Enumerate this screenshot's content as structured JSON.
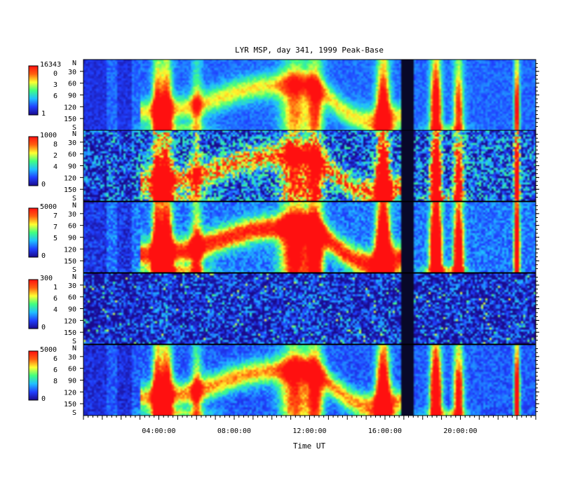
{
  "chart_data": {
    "type": "heatmap",
    "title": "LYR MSP, day 341, 1999 Peak-Base",
    "xlabel": "Time UT",
    "x_ticks": [
      {
        "hour": 4,
        "label": "04:00:00"
      },
      {
        "hour": 8,
        "label": "08:00:00"
      },
      {
        "hour": 12,
        "label": "12:00:00"
      },
      {
        "hour": 16,
        "label": "16:00:00"
      },
      {
        "hour": 20,
        "label": "20:00:00"
      }
    ],
    "x_range_hours": [
      0,
      24
    ],
    "data_gap_hours": [
      16.9,
      17.5
    ],
    "y_axis": {
      "top_label": "N",
      "bottom_label": "S",
      "ticks": [
        "30",
        "60",
        "90",
        "120",
        "150"
      ],
      "range_deg": [
        0,
        180
      ]
    },
    "colormap": [
      "#1a0a8c",
      "#2040ff",
      "#20c0ff",
      "#40ff80",
      "#ffff30",
      "#ff6010",
      "#ff1010"
    ],
    "panels": [
      {
        "scale_max": "16343",
        "scale_labels": [
          "0",
          "3",
          "6"
        ],
        "scale_min": "1",
        "noise": 0.06,
        "base": 0.22
      },
      {
        "scale_max": "1000",
        "scale_labels": [
          "8",
          "2",
          "4"
        ],
        "scale_min": "0",
        "noise": 0.3,
        "base": 0.18
      },
      {
        "scale_max": "5000",
        "scale_labels": [
          "7",
          "7",
          "5"
        ],
        "scale_min": "0",
        "noise": 0.1,
        "base": 0.24
      },
      {
        "scale_max": "300",
        "scale_labels": [
          "1",
          "6",
          "4"
        ],
        "scale_min": "0",
        "noise": 0.25,
        "base": 0.08
      },
      {
        "scale_max": "5000",
        "scale_labels": [
          "6",
          "6",
          "8"
        ],
        "scale_min": "0",
        "noise": 0.08,
        "base": 0.2
      }
    ]
  }
}
